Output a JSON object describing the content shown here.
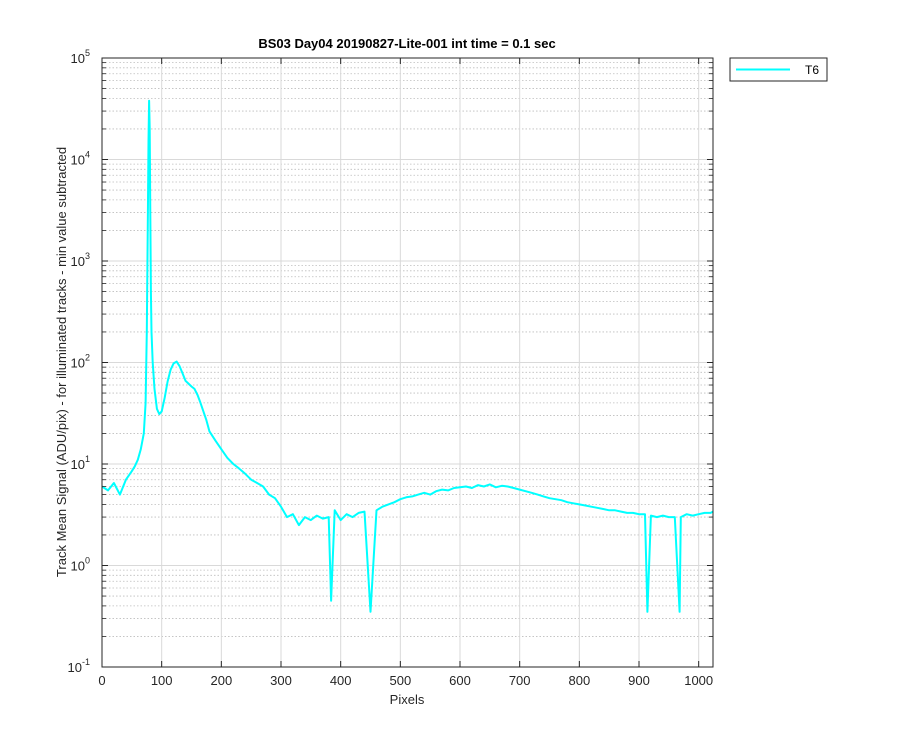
{
  "chart_data": {
    "type": "line",
    "title": "BS03 Day04 20190827-Lite-001 int time = 0.1 sec",
    "xlabel": "Pixels",
    "ylabel": "Track Mean Signal (ADU/pix) - for illuminated tracks - min value subtracted",
    "xlim": [
      0,
      1024
    ],
    "ylim": [
      0.1,
      100000
    ],
    "yscale": "log",
    "grid": true,
    "legend_position": "outside-top-right",
    "x_ticks": [
      0,
      100,
      200,
      300,
      400,
      500,
      600,
      700,
      800,
      900,
      1000
    ],
    "x_tick_labels": [
      "0",
      "100",
      "200",
      "300",
      "400",
      "500",
      "600",
      "700",
      "800",
      "900",
      "1000"
    ],
    "y_ticks": [
      {
        "value": 0.1,
        "base": "10",
        "exp": "-1"
      },
      {
        "value": 1,
        "base": "10",
        "exp": "0"
      },
      {
        "value": 10,
        "base": "10",
        "exp": "1"
      },
      {
        "value": 100,
        "base": "10",
        "exp": "2"
      },
      {
        "value": 1000,
        "base": "10",
        "exp": "3"
      },
      {
        "value": 10000,
        "base": "10",
        "exp": "4"
      },
      {
        "value": 100000,
        "base": "10",
        "exp": "5"
      }
    ],
    "series": [
      {
        "name": "T6",
        "color": "#00ffff",
        "x": [
          0,
          10,
          20,
          30,
          40,
          50,
          55,
          60,
          65,
          70,
          73,
          75,
          77,
          78,
          79,
          80,
          81,
          82,
          83,
          85,
          88,
          92,
          96,
          100,
          105,
          110,
          115,
          120,
          125,
          130,
          135,
          140,
          145,
          150,
          155,
          160,
          165,
          170,
          175,
          180,
          190,
          200,
          210,
          220,
          230,
          240,
          250,
          260,
          270,
          280,
          290,
          300,
          310,
          320,
          330,
          340,
          350,
          360,
          370,
          380,
          384,
          390,
          400,
          410,
          420,
          430,
          440,
          450,
          460,
          470,
          480,
          490,
          500,
          510,
          520,
          530,
          540,
          550,
          560,
          570,
          580,
          590,
          600,
          610,
          620,
          630,
          640,
          650,
          660,
          670,
          680,
          690,
          700,
          710,
          720,
          730,
          740,
          750,
          760,
          770,
          780,
          790,
          800,
          810,
          820,
          830,
          840,
          850,
          860,
          870,
          880,
          890,
          900,
          910,
          914,
          920,
          930,
          940,
          950,
          960,
          968,
          970,
          980,
          990,
          1000,
          1010,
          1020,
          1024
        ],
        "y": [
          6.0,
          5.5,
          6.5,
          5.0,
          7.0,
          8.5,
          9.5,
          11.0,
          14.0,
          20.0,
          40.0,
          200.0,
          3000.0,
          15000.0,
          38000.0,
          20000.0,
          3000.0,
          500.0,
          200.0,
          100.0,
          55.0,
          35.0,
          31.0,
          33.0,
          45.0,
          65.0,
          85.0,
          98.0,
          102.0,
          92.0,
          78.0,
          66.0,
          62.0,
          58.0,
          55.0,
          48.0,
          40.0,
          33.0,
          27.0,
          21.0,
          17.0,
          14.0,
          11.5,
          10.0,
          9.0,
          8.0,
          7.0,
          6.5,
          6.0,
          5.0,
          4.6,
          3.8,
          3.0,
          3.2,
          2.5,
          3.0,
          2.8,
          3.1,
          2.9,
          3.0,
          0.45,
          3.5,
          2.8,
          3.2,
          3.0,
          3.3,
          3.4,
          0.35,
          3.5,
          3.8,
          4.0,
          4.2,
          4.5,
          4.7,
          4.8,
          5.0,
          5.2,
          5.0,
          5.4,
          5.6,
          5.5,
          5.8,
          5.9,
          6.0,
          5.8,
          6.2,
          6.0,
          6.3,
          5.9,
          6.1,
          6.0,
          5.8,
          5.6,
          5.4,
          5.2,
          5.0,
          4.8,
          4.6,
          4.5,
          4.4,
          4.2,
          4.1,
          4.0,
          3.9,
          3.8,
          3.7,
          3.6,
          3.5,
          3.5,
          3.4,
          3.3,
          3.3,
          3.2,
          3.2,
          0.35,
          3.1,
          3.0,
          3.1,
          3.0,
          3.0,
          0.35,
          3.0,
          3.2,
          3.1,
          3.2,
          3.3,
          3.3,
          3.4
        ]
      }
    ]
  }
}
